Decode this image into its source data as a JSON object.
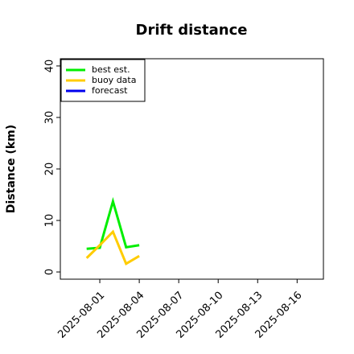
{
  "chart_data": {
    "type": "line",
    "title": "Drift distance",
    "ylabel": "Distance (km)",
    "x": [
      "2025-07-31",
      "2025-08-01",
      "2025-08-02",
      "2025-08-03",
      "2025-08-04"
    ],
    "series": [
      {
        "name": "best est.",
        "color": "#00ee00",
        "values": [
          4.5,
          4.7,
          13.7,
          4.8,
          5.2
        ]
      },
      {
        "name": "buoy data",
        "color": "#ffcc00",
        "values": [
          2.7,
          5.2,
          7.8,
          1.6,
          3.1
        ]
      },
      {
        "name": "forecast",
        "color": "#0000ee",
        "values": [
          null,
          null,
          null,
          null,
          null
        ]
      }
    ],
    "xlim": [
      "2025-07-29",
      "2025-08-18"
    ],
    "xticks": [
      "2025-08-01",
      "2025-08-04",
      "2025-08-07",
      "2025-08-10",
      "2025-08-13",
      "2025-08-16"
    ],
    "xtick_colors": [
      "#000000",
      "#000000",
      "#228b22",
      "#000000",
      "#000000",
      "#000000"
    ],
    "ylim": [
      -1.4,
      41.4
    ],
    "yticks": [
      0,
      10,
      20,
      30,
      40
    ],
    "legend": "upper left"
  }
}
